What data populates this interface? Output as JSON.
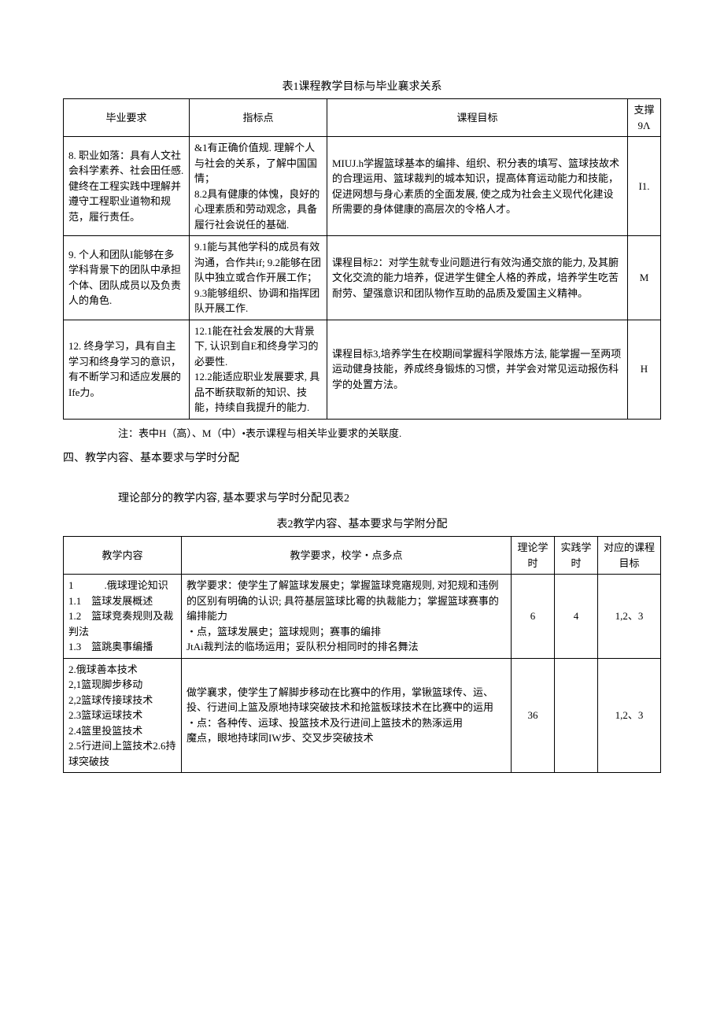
{
  "table1": {
    "caption": "表1课程教学目标与毕业襄求关系",
    "headers": [
      "毕业要求",
      "指标点",
      "课程目标",
      "支撑9Λ"
    ],
    "rows": [
      {
        "c1": "8. 职业如落：具有人文社会科学素养、社会田任感. 健终在工程实践中理解并遵守工程职业道物和规范，履行责任。",
        "c2": "&1有正确价值规. 理解个人与社会的关系，了解中国国情；\n8.2具有健康的体愧，良好的心理素质和劳动观念，具备履行社会说任的基础.",
        "c3": "MIUJ.h学握篮球基本的编排、组织、积分表的填写、篮球技故术的合理运用、篮球裁判的城本知识，提高体育运动能力和技能，促进网想与身心素质的全面发展, 使之成为社会主义现代化建设所需要的身体健康的高层次的令格人才。",
        "c4": "I1."
      },
      {
        "c1": "9. 个人和团队I能够在多学科背景下的团队中承担个体、团队成员以及负责人的角色.",
        "c2": "9.1能与其他学科的成员有效沟通，合作共if;  9.2能够在团队中独立或合作开展工作；\n9.3能够组织、协调和指挥团队开展工作.",
        "c3": "课程目标2：对学生就专业问题进行有效沟通交旅的能力, 及其腑文化交流的能力培养，促进学生健全人格的养成，培养学生吃苦耐劳、望强意识和团队物作互助的品质及爱国主义精神。",
        "c4": "M"
      },
      {
        "c1": "12. 终身学习，具有自主学习和终身学习的意识，有不断学习和适应发展的Ife力。",
        "c2": "12.1能在社会发展的大背景下, 认识到自E和终身学习的必要性.\n12.2能适应职业发展要求, 具品不断获取新的知识、技能，持续自我提升的能力.",
        "c3": "课程目标3,培养学生在校期间掌握科学限炼方法, 能掌握一至两项运动健身技能，养成终身锻炼的习惯，并学会对常见运动报伤科学的处置方法。",
        "c4": "H"
      }
    ]
  },
  "note1": "注：表中H（高）、M（中）•表示课程与相关毕业要求的关联度.",
  "sectionHeading": "四、教学内容、基本要求与学时分配",
  "table2Intro": "理论部分的教学内容, 基本要求与学时分配见表2",
  "table2": {
    "caption": "表2教学内容、基本要求与学附分配",
    "headers": [
      "教学内容",
      "教学要求，校学・点多点",
      "理论学时",
      "实践学时",
      "对应的课程目标"
    ],
    "rows": [
      {
        "c1": "1　　　.俄球理论知识\n1.1　篮球发展概述\n1.2　篮球竞奏规则及裁判法\n1.3　篮跳奥事编播",
        "c2": "教学要求：使学生了解篮球发展史；掌握篮球竞寤规则, 对犯规和违例的区别有明确的认识; 具符基层篮球比霉的执裁能力；掌握篮球赛事的编排能力\n・点，篮球发展史；篮球规则；赛事的编排\nJtAi裁判法的临场运用；妥队积分相同时的排名舞法",
        "c3": "6",
        "c4": "4",
        "c5": "1,2、3"
      },
      {
        "c1": "2.俄球善本技术\n2,1篮现脚步移动\n2,2篮球传接球技术\n2.3篮球运球技术\n2.4篮里投篮技术\n2.5行进间上篮技术2.6持球突破技",
        "c2": "做学襄求，使学生了解脚步移动在比赛中的作用，掌锹篮球传、运、投、行进间上篮及原地持球突破技术和抢篮板球技术在比赛中的运用\n・点：各种传、运球、投篮技术及行进间上篮技术的熟涿运用\n魔点，眼地持球同IW步、交叉步突破技术",
        "c3": "36",
        "c4": "",
        "c5": "1,2、3"
      }
    ]
  }
}
